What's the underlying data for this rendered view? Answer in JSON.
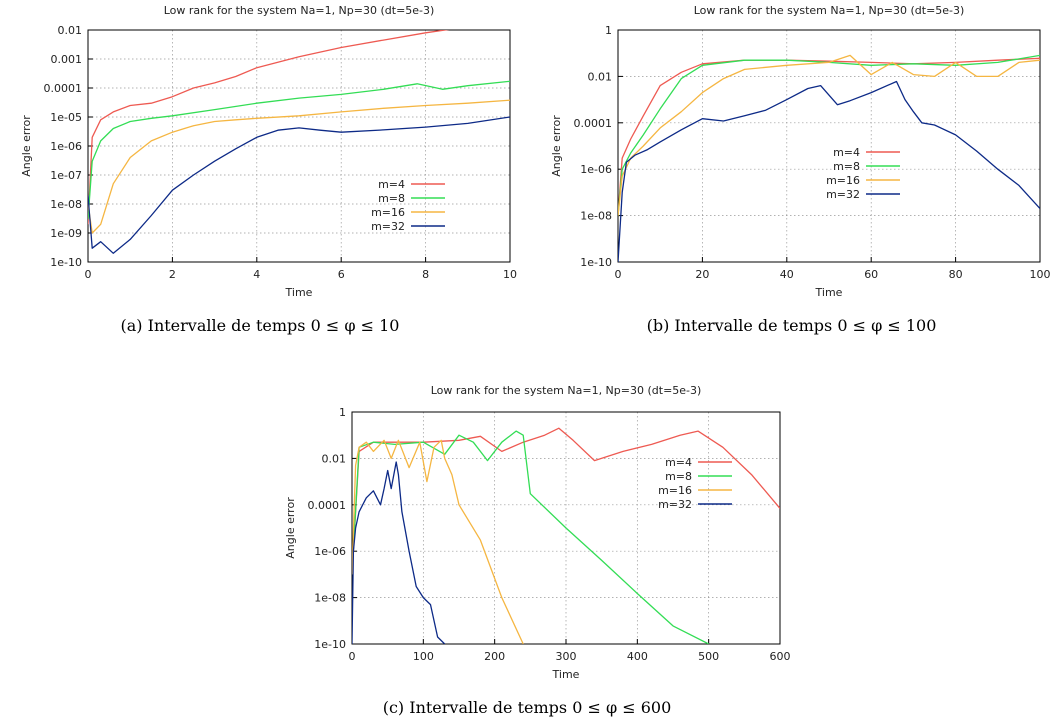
{
  "figure": {
    "captions": [
      "(a) Intervalle de temps 0 ≤ φ ≤ 10",
      "(b) Intervalle de temps 0 ≤ φ ≤ 100",
      "(c) Intervalle de temps 0 ≤ φ ≤ 600"
    ]
  },
  "colors": {
    "m=4": "#ee5a52",
    "m=8": "#33dd55",
    "m=16": "#f5b642",
    "m=32": "#0d2a87"
  },
  "chart_data": [
    {
      "type": "line",
      "title": "Low rank for the system Na=1, Np=30   (dt=5e-3)",
      "xlabel": "Time",
      "ylabel": "Angle error",
      "xlim": [
        0,
        10
      ],
      "ylim": [
        1e-10,
        0.01
      ],
      "yscale": "log",
      "grid": true,
      "legend": "lower-right",
      "xticks": [
        "0",
        "2",
        "4",
        "6",
        "8",
        "10"
      ],
      "yticks": [
        "1e-10",
        "1e-09",
        "1e-08",
        "1e-07",
        "1e-06",
        "1e-05",
        "0.0001",
        "0.001",
        "0.01"
      ],
      "series": [
        {
          "name": "m=4",
          "x": [
            0,
            0.1,
            0.3,
            0.6,
            1,
            1.5,
            2,
            2.5,
            3,
            3.5,
            4,
            5,
            6,
            7,
            8,
            9,
            10
          ],
          "y": [
            2e-09,
            2e-06,
            8e-06,
            1.5e-05,
            2.5e-05,
            3e-05,
            5e-05,
            0.0001,
            0.00015,
            0.00025,
            0.0005,
            0.0012,
            0.0025,
            0.0045,
            0.008,
            0.013,
            0.022
          ]
        },
        {
          "name": "m=8",
          "x": [
            0,
            0.1,
            0.3,
            0.6,
            1,
            1.5,
            2,
            3,
            4,
            5,
            6,
            7,
            7.8,
            8.4,
            9,
            10
          ],
          "y": [
            3e-09,
            3e-07,
            1.5e-06,
            4e-06,
            7e-06,
            9e-06,
            1.1e-05,
            1.8e-05,
            3e-05,
            4.5e-05,
            6e-05,
            9e-05,
            0.00014,
            9e-05,
            0.00012,
            0.00017
          ]
        },
        {
          "name": "m=16",
          "x": [
            0,
            0.1,
            0.3,
            0.6,
            1,
            1.5,
            2,
            2.5,
            3,
            3.5,
            4,
            5,
            6,
            7,
            8,
            9,
            10
          ],
          "y": [
            1e-08,
            1e-09,
            2e-09,
            5e-08,
            4e-07,
            1.5e-06,
            3e-06,
            5e-06,
            7e-06,
            8e-06,
            9e-06,
            1.1e-05,
            1.5e-05,
            2e-05,
            2.5e-05,
            3e-05,
            3.8e-05
          ]
        },
        {
          "name": "m=32",
          "x": [
            0,
            0.1,
            0.3,
            0.6,
            1,
            1.5,
            2,
            2.5,
            3,
            3.5,
            4,
            4.5,
            5,
            5.5,
            6,
            7,
            8,
            9,
            10
          ],
          "y": [
            2e-08,
            3e-10,
            5e-10,
            2e-10,
            6e-10,
            4e-09,
            3e-08,
            1e-07,
            3e-07,
            8e-07,
            2e-06,
            3.5e-06,
            4.2e-06,
            3.5e-06,
            3e-06,
            3.6e-06,
            4.5e-06,
            6e-06,
            1e-05
          ]
        }
      ]
    },
    {
      "type": "line",
      "title": "Low rank for the system Na=1, Np=30   (dt=5e-3)",
      "xlabel": "Time",
      "ylabel": "Angle error",
      "xlim": [
        0,
        100
      ],
      "ylim": [
        1e-10,
        1
      ],
      "yscale": "log",
      "grid": true,
      "legend": "center-right",
      "xticks": [
        "0",
        "20",
        "40",
        "60",
        "80",
        "100"
      ],
      "yticks": [
        "1e-10",
        "1e-08",
        "1e-06",
        "0.0001",
        "0.01",
        "1"
      ],
      "series": [
        {
          "name": "m=4",
          "x": [
            0,
            1,
            3,
            6,
            10,
            15,
            20,
            30,
            40,
            50,
            60,
            70,
            80,
            90,
            100
          ],
          "y": [
            1e-08,
            3e-06,
            2e-05,
            0.0002,
            0.004,
            0.015,
            0.035,
            0.05,
            0.05,
            0.045,
            0.04,
            0.035,
            0.04,
            0.05,
            0.06
          ]
        },
        {
          "name": "m=8",
          "x": [
            0,
            1,
            3,
            6,
            10,
            15,
            20,
            30,
            40,
            50,
            60,
            70,
            80,
            90,
            100
          ],
          "y": [
            1e-08,
            1e-06,
            5e-06,
            3e-05,
            0.0004,
            0.008,
            0.03,
            0.05,
            0.05,
            0.04,
            0.03,
            0.035,
            0.03,
            0.04,
            0.08
          ]
        },
        {
          "name": "m=16",
          "x": [
            0,
            1,
            3,
            6,
            10,
            15,
            20,
            25,
            30,
            40,
            50,
            55,
            60,
            65,
            70,
            75,
            80,
            85,
            90,
            95,
            100
          ],
          "y": [
            1e-08,
            5e-07,
            3e-06,
            1e-05,
            6e-05,
            0.0003,
            0.002,
            0.008,
            0.02,
            0.03,
            0.04,
            0.08,
            0.012,
            0.04,
            0.012,
            0.01,
            0.04,
            0.01,
            0.01,
            0.04,
            0.05
          ]
        },
        {
          "name": "m=32",
          "x": [
            0,
            1,
            2,
            4,
            7,
            10,
            15,
            20,
            25,
            30,
            35,
            40,
            45,
            48,
            52,
            55,
            60,
            66,
            68,
            70,
            72,
            75,
            80,
            85,
            90,
            95,
            100
          ],
          "y": [
            1e-10,
            1e-07,
            2e-06,
            4e-06,
            7e-06,
            1.5e-05,
            5e-05,
            0.00015,
            0.00012,
            0.0002,
            0.00035,
            0.001,
            0.003,
            0.004,
            0.0006,
            0.0009,
            0.002,
            0.006,
            0.001,
            0.0003,
            0.0001,
            8e-05,
            3e-05,
            6e-06,
            1e-06,
            2e-07,
            2e-08
          ]
        }
      ]
    },
    {
      "type": "line",
      "title": "Low rank for the system Na=1, Np=30   (dt=5e-3)",
      "xlabel": "Time",
      "ylabel": "Angle error",
      "xlim": [
        0,
        600
      ],
      "ylim": [
        1e-10,
        1
      ],
      "yscale": "log",
      "grid": true,
      "legend": "upper-right",
      "xticks": [
        "0",
        "100",
        "200",
        "300",
        "400",
        "500",
        "600"
      ],
      "yticks": [
        "1e-10",
        "1e-08",
        "1e-06",
        "0.0001",
        "0.01",
        "1"
      ],
      "series": [
        {
          "name": "m=4",
          "x": [
            0,
            10,
            30,
            60,
            100,
            150,
            180,
            210,
            240,
            270,
            290,
            310,
            340,
            380,
            420,
            460,
            485,
            520,
            560,
            600
          ],
          "y": [
            1e-07,
            0.02,
            0.05,
            0.05,
            0.05,
            0.06,
            0.09,
            0.02,
            0.05,
            0.1,
            0.2,
            0.06,
            0.008,
            0.02,
            0.04,
            0.1,
            0.15,
            0.03,
            0.002,
            7e-05
          ]
        },
        {
          "name": "m=8",
          "x": [
            0,
            10,
            30,
            60,
            100,
            130,
            150,
            170,
            190,
            210,
            230,
            240,
            250,
            300,
            350,
            400,
            450,
            500
          ],
          "y": [
            1e-07,
            0.03,
            0.05,
            0.04,
            0.05,
            0.015,
            0.1,
            0.05,
            0.008,
            0.05,
            0.15,
            0.1,
            0.0003,
            1e-05,
            4e-07,
            1.5e-08,
            6e-10,
            1e-10
          ]
        },
        {
          "name": "m=16",
          "x": [
            0,
            5,
            10,
            20,
            30,
            45,
            55,
            65,
            80,
            95,
            105,
            115,
            125,
            130,
            140,
            150,
            180,
            210,
            240
          ],
          "y": [
            1e-07,
            0.005,
            0.03,
            0.05,
            0.02,
            0.06,
            0.01,
            0.06,
            0.004,
            0.05,
            0.001,
            0.03,
            0.06,
            0.01,
            0.002,
            0.0001,
            3e-06,
            1e-08,
            1e-10
          ]
        },
        {
          "name": "m=32",
          "x": [
            0,
            2,
            5,
            10,
            20,
            30,
            40,
            45,
            50,
            55,
            62,
            65,
            70,
            80,
            90,
            100,
            110,
            120,
            130
          ],
          "y": [
            1e-10,
            1e-06,
            1e-05,
            5e-05,
            0.0002,
            0.0004,
            0.0001,
            0.0005,
            0.003,
            0.0005,
            0.007,
            0.002,
            5e-05,
            1e-06,
            3e-08,
            1e-08,
            5e-09,
            2e-10,
            1e-10
          ]
        }
      ]
    }
  ]
}
